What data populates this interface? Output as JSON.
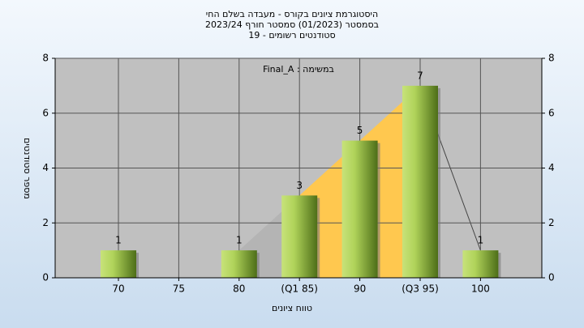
{
  "chart_data": {
    "type": "bar",
    "title": "היסטוגרמת ציונים בקורס - מעבדה בשלם החי",
    "subtitle": "בסמסטר (01/2023) סמסטר חורף 2023/24",
    "subtitle2": "סטודנטים רשומים - 19",
    "annotation": "במשימה : Final_A",
    "xlabel": "טווח ציונים",
    "ylabel": "מספר סטודנטים",
    "categories": [
      "70",
      "75",
      "80",
      "(Q1 85)",
      "90",
      "(Q3 95)",
      "100"
    ],
    "values": [
      1,
      null,
      1,
      3,
      5,
      7,
      1
    ],
    "color": "#8fb83a",
    "ylim": [
      0,
      8
    ],
    "yticks": [
      0,
      2,
      4,
      6,
      8
    ],
    "y2lim": [
      0,
      8
    ],
    "y2ticks": [
      0,
      2,
      4,
      6,
      8
    ],
    "grid": true
  }
}
